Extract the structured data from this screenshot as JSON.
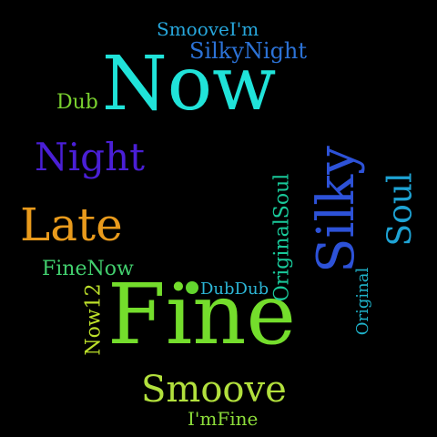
{
  "cloud": {
    "background": "#000000",
    "words": {
      "now": {
        "text": "Now",
        "color": "#20e3d9"
      },
      "fine": {
        "text": "Fine",
        "color": "#74dd2c"
      },
      "late": {
        "text": "Late",
        "color": "#e89a1c"
      },
      "night": {
        "text": "Night",
        "color": "#4a1fd6"
      },
      "silky": {
        "text": "Silky",
        "color": "#2d52d8"
      },
      "soul": {
        "text": "Soul",
        "color": "#1ea3d4"
      },
      "originalsoul": {
        "text": "OriginalSoul",
        "color": "#19c99a"
      },
      "original": {
        "text": "Original",
        "color": "#1fb2c9"
      },
      "smoove": {
        "text": "Smoove",
        "color": "#b2e03d"
      },
      "silkynight": {
        "text": "SilkyNight",
        "color": "#2c72d6"
      },
      "smooveim": {
        "text": "SmooveI'm",
        "color": "#27a7dc"
      },
      "dub": {
        "text": "Dub",
        "color": "#7ad12f"
      },
      "finenow": {
        "text": "FineNow",
        "color": "#42cf6e"
      },
      "now12": {
        "text": "Now12",
        "color": "#bde02a"
      },
      "dubdub": {
        "text": "DubDub",
        "color": "#2cb6d6"
      },
      "imfine": {
        "text": "I'mFine",
        "color": "#8cdc3a"
      }
    },
    "dot_color": "#63d52e"
  }
}
